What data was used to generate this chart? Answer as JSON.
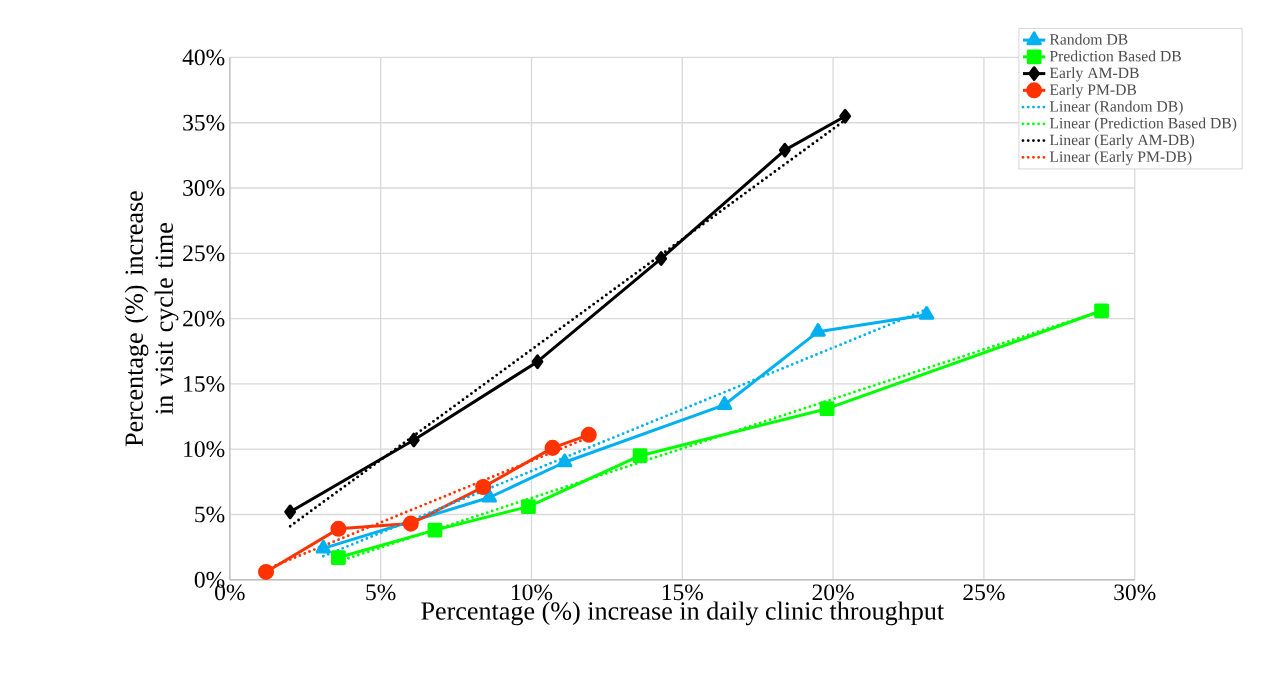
{
  "chart_data": {
    "type": "line",
    "xlabel": "Percentage (%)  increase in daily clinic throughput",
    "ylabel": "Percentage (%)  increase in visit cycle time",
    "xlim": [
      0,
      30
    ],
    "ylim": [
      0,
      40
    ],
    "xticks": [
      {
        "value": 0,
        "label": "0%"
      },
      {
        "value": 5,
        "label": "5%"
      },
      {
        "value": 10,
        "label": "10%"
      },
      {
        "value": 15,
        "label": "15%"
      },
      {
        "value": 20,
        "label": "20%"
      },
      {
        "value": 25,
        "label": "25%"
      },
      {
        "value": 30,
        "label": "30%"
      }
    ],
    "yticks": [
      {
        "value": 0,
        "label": "0%"
      },
      {
        "value": 5,
        "label": "5%"
      },
      {
        "value": 10,
        "label": "10%"
      },
      {
        "value": 15,
        "label": "15%"
      },
      {
        "value": 20,
        "label": "20%"
      },
      {
        "value": 25,
        "label": "25%"
      },
      {
        "value": 30,
        "label": "30%"
      },
      {
        "value": 35,
        "label": "35%"
      },
      {
        "value": 40,
        "label": "40%"
      }
    ],
    "grid": true,
    "legend": "top right",
    "line_style": "solid",
    "series": [
      {
        "name": "Random DB",
        "color": "#00b0f0",
        "marker": "triangle",
        "x": [
          3.1,
          8.6,
          11.1,
          16.4,
          19.5,
          23.1
        ],
        "values": [
          2.4,
          6.3,
          9.0,
          13.4,
          19.0,
          20.3
        ]
      },
      {
        "name": "Prediction Based DB",
        "color": "#00ff00",
        "marker": "square",
        "x": [
          3.6,
          6.8,
          9.9,
          13.6,
          19.8,
          28.9
        ],
        "values": [
          1.7,
          3.8,
          5.6,
          9.5,
          13.1,
          20.6
        ]
      },
      {
        "name": "Early AM-DB",
        "color": "#000000",
        "marker": "diamond",
        "x": [
          2.0,
          6.1,
          10.2,
          14.3,
          18.4,
          20.4
        ],
        "values": [
          5.2,
          10.7,
          16.7,
          24.6,
          32.9,
          35.5
        ]
      },
      {
        "name": "Early PM-DB",
        "color": "#ff3300",
        "marker": "circle",
        "x": [
          1.2,
          3.6,
          6.0,
          8.4,
          10.7,
          11.9
        ],
        "values": [
          0.6,
          3.9,
          4.3,
          7.1,
          10.1,
          11.1
        ]
      },
      {
        "name": "Linear (Random DB)",
        "color": "#00b0f0",
        "marker": "none",
        "line_style": "dotted",
        "x": [
          3.1,
          23.1
        ],
        "values": [
          1.8,
          20.7
        ]
      },
      {
        "name": "Linear (Prediction Based DB)",
        "color": "#00ff00",
        "marker": "none",
        "line_style": "dotted",
        "x": [
          3.6,
          28.9
        ],
        "values": [
          1.4,
          20.6
        ]
      },
      {
        "name": "Linear (Early AM-DB)",
        "color": "#000000",
        "marker": "none",
        "line_style": "dotted",
        "x": [
          2.0,
          20.4
        ],
        "values": [
          4.1,
          35.2
        ]
      },
      {
        "name": "Linear (Early PM-DB)",
        "color": "#ff3300",
        "marker": "none",
        "line_style": "dotted",
        "x": [
          1.2,
          11.9
        ],
        "values": [
          0.8,
          10.9
        ]
      }
    ]
  }
}
